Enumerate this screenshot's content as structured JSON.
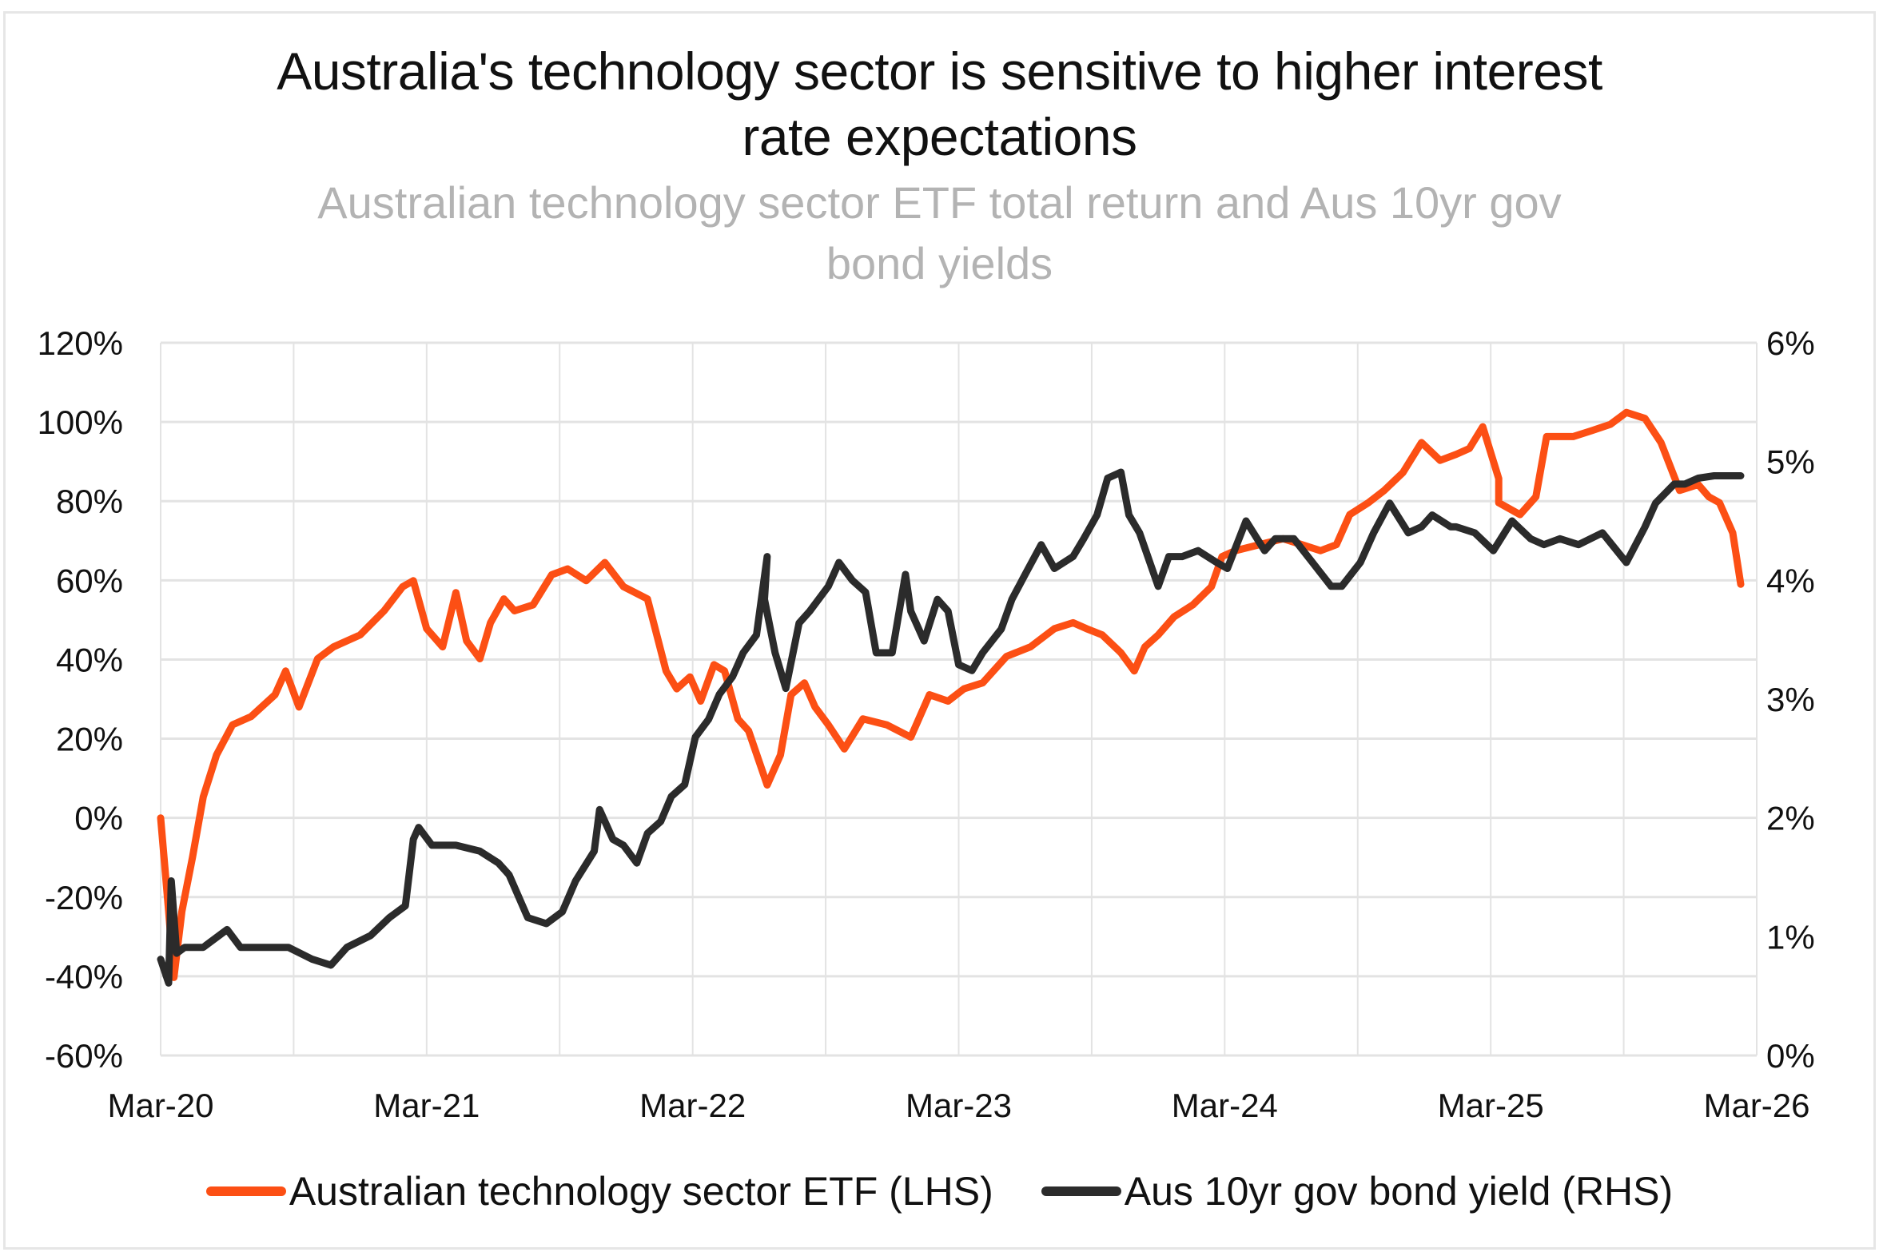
{
  "title": "Australia's technology sector is sensitive to higher interest rate expectations",
  "title_lines": [
    "Australia's technology sector is sensitive to higher interest",
    "rate expectations"
  ],
  "subtitle_lines": [
    "Australian technology sector ETF total return and Aus 10yr gov",
    "bond yields"
  ],
  "colors": {
    "etf": "#fc4f14",
    "bond": "#2b2b2b",
    "grid": "#e3e3e3"
  },
  "chart_data": {
    "type": "line",
    "title": "Australia's technology sector is sensitive to higher interest rate expectations",
    "subtitle": "Australian technology sector ETF total return and Aus 10yr gov bond yields",
    "xlabel": "",
    "ylabel": "",
    "x_unit": "years since Mar-2020",
    "x_range": [
      0,
      6
    ],
    "x_ticks": [
      0,
      1,
      2,
      3,
      4,
      5,
      6
    ],
    "x_tick_labels": [
      "Mar-20",
      "Mar-21",
      "Mar-22",
      "Mar-23",
      "Mar-24",
      "Mar-25",
      "Mar-26"
    ],
    "x_minor_gridlines_every": 0.5,
    "y_left": {
      "range": [
        -60,
        120
      ],
      "ticks": [
        120,
        100,
        80,
        60,
        40,
        20,
        0,
        -20,
        -40,
        -60
      ],
      "tick_labels": [
        "120%",
        "100%",
        "80%",
        "60%",
        "40%",
        "20%",
        "0%",
        "-20%",
        "-40%",
        "-60%"
      ]
    },
    "y_right": {
      "range": [
        0,
        6
      ],
      "ticks": [
        6,
        5,
        4,
        3,
        2,
        1,
        0
      ],
      "tick_labels": [
        "6%",
        "5%",
        "4%",
        "3%",
        "2%",
        "1%",
        "0%"
      ]
    },
    "grid": true,
    "legend_position": "bottom",
    "series": [
      {
        "name": "Australian technology sector ETF (LHS)",
        "axis": "left",
        "color": "#fc4f14",
        "x": [
          0.0,
          0.03,
          0.05,
          0.08,
          0.12,
          0.16,
          0.21,
          0.27,
          0.34,
          0.43,
          0.47,
          0.52,
          0.59,
          0.65,
          0.75,
          0.84,
          0.91,
          0.95,
          1.0,
          1.06,
          1.11,
          1.15,
          1.2,
          1.24,
          1.29,
          1.33,
          1.4,
          1.47,
          1.53,
          1.6,
          1.67,
          1.74,
          1.83,
          1.9,
          1.94,
          1.99,
          2.03,
          2.08,
          2.12,
          2.17,
          2.21,
          2.28,
          2.33,
          2.37,
          2.42,
          2.46,
          2.51,
          2.57,
          2.64,
          2.73,
          2.82,
          2.89,
          2.96,
          3.02,
          3.09,
          3.18,
          3.27,
          3.36,
          3.43,
          3.48,
          3.54,
          3.61,
          3.66,
          3.7,
          3.75,
          3.81,
          3.88,
          3.95,
          3.99,
          4.04,
          4.13,
          4.22,
          4.29,
          4.36,
          4.42,
          4.47,
          4.54,
          4.6,
          4.67,
          4.74,
          4.81,
          4.87,
          4.92,
          4.97,
          5.03,
          5.03,
          5.11,
          5.17,
          5.21,
          5.31,
          5.38,
          5.45,
          5.51,
          5.58,
          5.64,
          5.71,
          5.78,
          5.82,
          5.86,
          5.91,
          5.94
        ],
        "values": [
          0,
          -23.6,
          -40.3,
          -23.6,
          -9.9,
          5.3,
          15.9,
          23.5,
          25.6,
          31.1,
          37.1,
          28.0,
          40.2,
          43.2,
          46.2,
          52.3,
          58.4,
          59.9,
          47.8,
          43.2,
          56.9,
          44.7,
          40.2,
          49.3,
          55.3,
          52.3,
          53.8,
          61.4,
          62.9,
          59.9,
          64.5,
          58.4,
          55.3,
          37.1,
          32.6,
          35.6,
          29.5,
          38.7,
          37.1,
          25.0,
          22.0,
          8.3,
          15.9,
          31.1,
          34.1,
          28.0,
          23.5,
          17.4,
          25.0,
          23.5,
          20.4,
          31.1,
          29.5,
          32.6,
          34.1,
          40.8,
          43.2,
          47.8,
          49.3,
          47.8,
          46.2,
          41.7,
          37.1,
          43.2,
          46.2,
          50.8,
          53.8,
          58.4,
          66.0,
          67.5,
          69.0,
          70.5,
          69.0,
          67.5,
          69.0,
          76.6,
          79.6,
          82.7,
          87.2,
          94.8,
          90.3,
          91.8,
          93.3,
          98.8,
          85.7,
          79.6,
          76.6,
          81.1,
          96.3,
          96.3,
          97.8,
          99.4,
          102.4,
          100.9,
          94.8,
          82.7,
          84.2,
          81.1,
          79.6,
          72.0,
          59.0
        ]
      },
      {
        "name": "Aus 10yr gov bond yield (RHS)",
        "axis": "right",
        "color": "#2b2b2b",
        "x": [
          0.0,
          0.03,
          0.04,
          0.06,
          0.09,
          0.16,
          0.25,
          0.3,
          0.39,
          0.48,
          0.57,
          0.64,
          0.7,
          0.79,
          0.86,
          0.92,
          0.95,
          0.97,
          1.02,
          1.11,
          1.2,
          1.27,
          1.31,
          1.38,
          1.45,
          1.51,
          1.56,
          1.63,
          1.65,
          1.7,
          1.74,
          1.79,
          1.83,
          1.88,
          1.92,
          1.97,
          2.01,
          2.06,
          2.1,
          2.15,
          2.19,
          2.24,
          2.28,
          2.27,
          2.31,
          2.35,
          2.4,
          2.44,
          2.51,
          2.55,
          2.6,
          2.65,
          2.69,
          2.75,
          2.8,
          2.82,
          2.87,
          2.92,
          2.96,
          3.0,
          3.05,
          3.09,
          3.16,
          3.2,
          3.25,
          3.31,
          3.36,
          3.43,
          3.47,
          3.52,
          3.56,
          3.61,
          3.64,
          3.68,
          3.75,
          3.79,
          3.84,
          3.9,
          3.97,
          4.01,
          4.08,
          4.15,
          4.19,
          4.26,
          4.33,
          4.4,
          4.44,
          4.51,
          4.56,
          4.62,
          4.69,
          4.74,
          4.78,
          4.85,
          4.87,
          4.94,
          5.01,
          5.08,
          5.15,
          5.2,
          5.26,
          5.33,
          5.42,
          5.51,
          5.58,
          5.62,
          5.69,
          5.73,
          5.78,
          5.84,
          5.89,
          5.94
        ],
        "values": [
          0.81,
          0.61,
          1.47,
          0.86,
          0.91,
          0.91,
          1.06,
          0.91,
          0.91,
          0.91,
          0.81,
          0.76,
          0.91,
          1.01,
          1.16,
          1.26,
          1.82,
          1.92,
          1.77,
          1.77,
          1.72,
          1.62,
          1.52,
          1.16,
          1.11,
          1.21,
          1.47,
          1.72,
          2.07,
          1.82,
          1.77,
          1.62,
          1.87,
          1.97,
          2.18,
          2.28,
          2.68,
          2.83,
          3.04,
          3.19,
          3.39,
          3.54,
          4.2,
          3.84,
          3.39,
          3.09,
          3.64,
          3.74,
          3.95,
          4.15,
          4.0,
          3.9,
          3.39,
          3.39,
          4.05,
          3.74,
          3.49,
          3.84,
          3.74,
          3.29,
          3.24,
          3.39,
          3.59,
          3.84,
          4.05,
          4.3,
          4.1,
          4.2,
          4.35,
          4.55,
          4.86,
          4.91,
          4.55,
          4.4,
          3.95,
          4.2,
          4.2,
          4.25,
          4.15,
          4.1,
          4.5,
          4.25,
          4.35,
          4.35,
          4.15,
          3.95,
          3.95,
          4.15,
          4.4,
          4.65,
          4.4,
          4.45,
          4.55,
          4.45,
          4.45,
          4.4,
          4.25,
          4.5,
          4.35,
          4.3,
          4.35,
          4.3,
          4.4,
          4.15,
          4.45,
          4.65,
          4.81,
          4.81,
          4.86,
          4.88,
          4.88,
          4.88
        ]
      }
    ]
  }
}
